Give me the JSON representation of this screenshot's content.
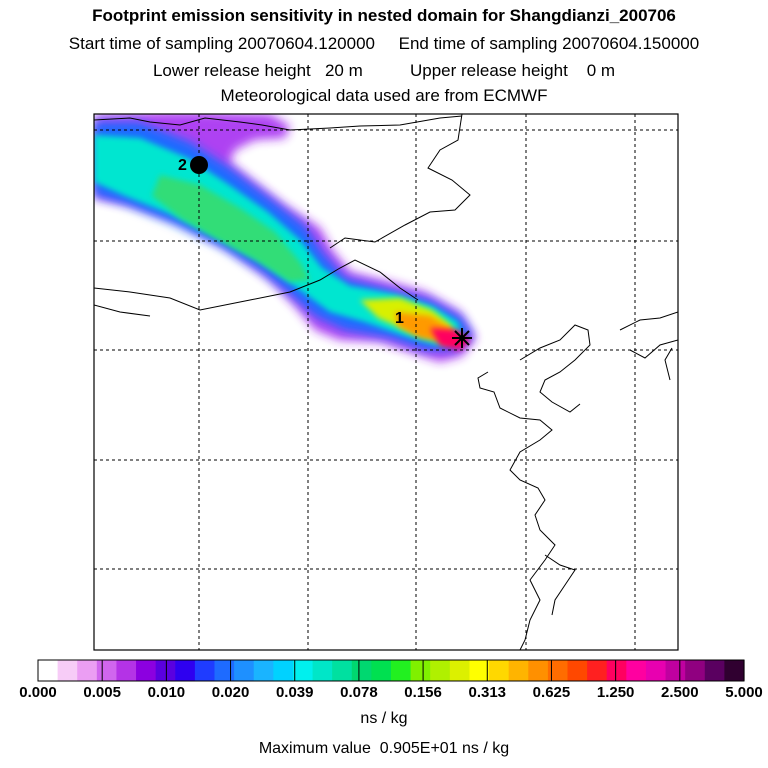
{
  "header": {
    "title": "Footprint emission sensitivity in nested domain for Shangdianzi_200706",
    "start_label": "Start time of sampling 20070604.120000",
    "end_label": "End time of sampling 20070604.150000",
    "lower_label": "Lower release height   20 m",
    "upper_label": "Upper release height    0 m",
    "met_label": "Meteorological data used are from ECMWF"
  },
  "map": {
    "markers": [
      {
        "label": "1",
        "symbol": "text"
      },
      {
        "label": "2",
        "symbol": "dot"
      }
    ],
    "receptor_symbol": "star",
    "grid": "dashed"
  },
  "colorbar": {
    "ticks": [
      "0.000",
      "0.005",
      "0.010",
      "0.020",
      "0.039",
      "0.078",
      "0.156",
      "0.313",
      "0.625",
      "1.250",
      "2.500",
      "5.000"
    ],
    "colors": [
      "#ffffff",
      "#f7ccf7",
      "#eb9ef3",
      "#d066ee",
      "#b433e6",
      "#8c00e0",
      "#5a00e0",
      "#2e00f0",
      "#1f3cff",
      "#1e6bff",
      "#1e90ff",
      "#1ab4ff",
      "#00d2ff",
      "#00f0ee",
      "#00e6c8",
      "#00e0a0",
      "#00d870",
      "#00e050",
      "#22f020",
      "#80f000",
      "#b0f000",
      "#dcf000",
      "#ffff00",
      "#ffd800",
      "#ffb400",
      "#ff9000",
      "#ff6c00",
      "#ff4800",
      "#ff2020",
      "#ff0060",
      "#ff00a0",
      "#e800b0",
      "#c000a0",
      "#900080",
      "#5a0060",
      "#300030"
    ],
    "units": "ns / kg",
    "max_label": "Maximum value  0.905E+01 ns / kg"
  }
}
